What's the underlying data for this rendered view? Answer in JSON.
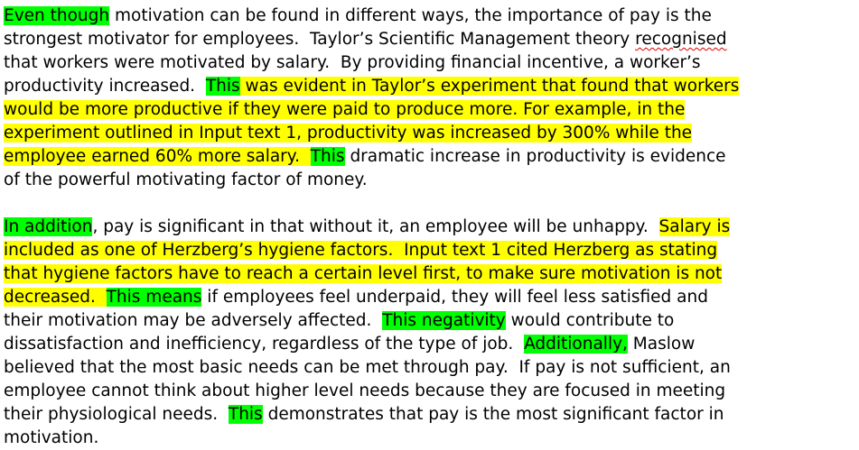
{
  "paragraphs": [
    {
      "lines": [
        [
          {
            "text": "Even though",
            "hl": "green"
          },
          {
            "text": " motivation can be found in different ways, the importance of pay is the"
          }
        ],
        [
          {
            "text": "strongest motivator for employees.  Taylor’s Scientific Management theory "
          },
          {
            "text": "recognised",
            "spell": true
          }
        ],
        [
          {
            "text": "that workers were motivated by salary.  By providing financial incentive, a worker’s"
          }
        ],
        [
          {
            "text": "productivity increased.  "
          },
          {
            "text": "This",
            "hl": "green"
          },
          {
            "text": " was evident in Taylor’s experiment that found that workers",
            "hl": "yellow"
          }
        ],
        [
          {
            "text": "would be more productive if they were paid to produce more. For example, in the",
            "hl": "yellow"
          }
        ],
        [
          {
            "text": "experiment outlined in Input text 1, productivity was increased by 300% while the",
            "hl": "yellow"
          }
        ],
        [
          {
            "text": "employee earned 60% more salary.  ",
            "hl": "yellow"
          },
          {
            "text": "This",
            "hl": "green"
          },
          {
            "text": " dramatic increase in productivity is evidence"
          }
        ],
        [
          {
            "text": "of the powerful motivating factor of money."
          }
        ]
      ]
    },
    {
      "lines": [
        [
          {
            "text": "In addition",
            "hl": "green"
          },
          {
            "text": ", pay is significant in that without it, an employee will be unhappy.  "
          },
          {
            "text": "Salary is",
            "hl": "yellow"
          }
        ],
        [
          {
            "text": "included as one of Herzberg’s hygiene factors.  Input text 1 cited Herzberg as stating",
            "hl": "yellow"
          }
        ],
        [
          {
            "text": "that hygiene factors have to reach a certain level first, to make sure motivation is not",
            "hl": "yellow"
          }
        ],
        [
          {
            "text": "decreased.  ",
            "hl": "yellow"
          },
          {
            "text": "This means",
            "hl": "green"
          },
          {
            "text": " if employees feel underpaid, they will feel less satisfied and"
          }
        ],
        [
          {
            "text": "their motivation may be adversely affected.  "
          },
          {
            "text": "This negativity",
            "hl": "green"
          },
          {
            "text": " would contribute to"
          }
        ],
        [
          {
            "text": "dissatisfaction and inefficiency, regardless of the type of job.  "
          },
          {
            "text": "Additionally,",
            "hl": "green"
          },
          {
            "text": " Maslow"
          }
        ],
        [
          {
            "text": "believed that the most basic needs can be met through pay.  If pay is not sufficient, an"
          }
        ],
        [
          {
            "text": "employee cannot think about higher level needs because they are focused in meeting"
          }
        ],
        [
          {
            "text": "their physiological needs.  "
          },
          {
            "text": "This",
            "hl": "green"
          },
          {
            "text": " demonstrates that pay is the most significant factor in"
          }
        ],
        [
          {
            "text": "motivation."
          }
        ]
      ]
    }
  ],
  "colors": {
    "highlight_green": "#00ff00",
    "highlight_yellow": "#ffff00",
    "spelling_underline": "#e00000",
    "text": "#000000"
  }
}
